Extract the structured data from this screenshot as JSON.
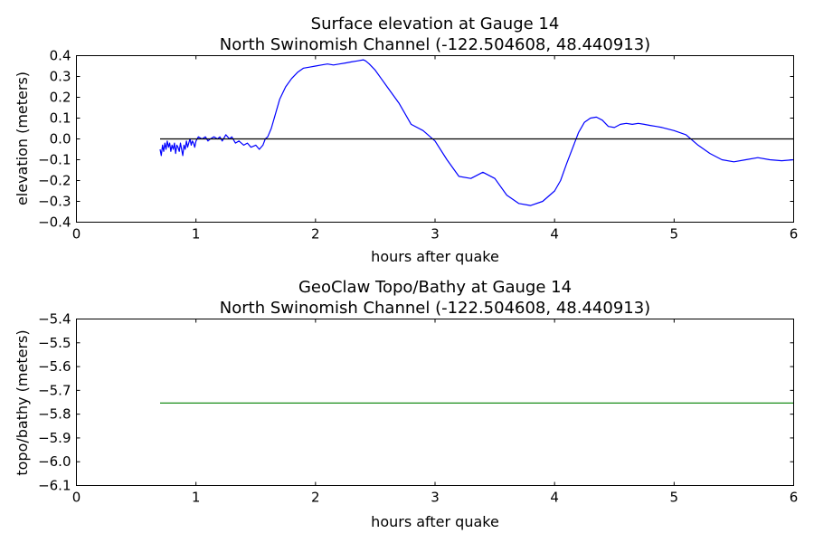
{
  "chart_data": [
    {
      "type": "line",
      "title": "Surface elevation at Gauge 14",
      "subtitle": "North Swinomish Channel  (-122.504608, 48.440913)",
      "xlabel": "hours after quake",
      "ylabel": "elevation (meters)",
      "xlim": [
        0,
        6
      ],
      "ylim": [
        -0.4,
        0.4
      ],
      "xticks": [
        "0",
        "1",
        "2",
        "3",
        "4",
        "5",
        "6"
      ],
      "yticks": [
        "0.4",
        "0.3",
        "0.2",
        "0.1",
        "0.0",
        "−0.1",
        "−0.2",
        "−0.3",
        "−0.4"
      ],
      "grid": false,
      "series": [
        {
          "color": "#0000ff",
          "x": [
            0.7,
            0.71,
            0.72,
            0.73,
            0.74,
            0.75,
            0.76,
            0.77,
            0.78,
            0.79,
            0.8,
            0.81,
            0.82,
            0.83,
            0.84,
            0.85,
            0.86,
            0.87,
            0.88,
            0.89,
            0.9,
            0.91,
            0.92,
            0.93,
            0.94,
            0.95,
            0.96,
            0.97,
            0.98,
            0.99,
            1.0,
            1.02,
            1.05,
            1.08,
            1.1,
            1.12,
            1.15,
            1.18,
            1.2,
            1.22,
            1.25,
            1.28,
            1.3,
            1.33,
            1.36,
            1.4,
            1.43,
            1.46,
            1.5,
            1.53,
            1.56,
            1.58,
            1.6,
            1.63,
            1.66,
            1.7,
            1.75,
            1.8,
            1.85,
            1.9,
            1.95,
            2.0,
            2.05,
            2.1,
            2.15,
            2.2,
            2.25,
            2.3,
            2.35,
            2.4,
            2.42,
            2.45,
            2.5,
            2.55,
            2.6,
            2.7,
            2.8,
            2.9,
            3.0,
            3.1,
            3.2,
            3.3,
            3.4,
            3.5,
            3.6,
            3.7,
            3.8,
            3.9,
            4.0,
            4.05,
            4.1,
            4.2,
            4.25,
            4.3,
            4.35,
            4.4,
            4.45,
            4.5,
            4.55,
            4.6,
            4.65,
            4.7,
            4.75,
            4.8,
            4.85,
            4.9,
            5.0,
            5.1,
            5.2,
            5.3,
            5.4,
            5.5,
            5.6,
            5.7,
            5.8,
            5.9,
            6.0
          ],
          "y": [
            -0.05,
            -0.08,
            -0.03,
            -0.06,
            -0.02,
            -0.05,
            -0.01,
            -0.04,
            -0.02,
            -0.06,
            -0.03,
            -0.05,
            -0.02,
            -0.07,
            -0.03,
            -0.04,
            -0.06,
            -0.02,
            -0.05,
            -0.08,
            -0.03,
            -0.05,
            -0.01,
            -0.04,
            -0.02,
            0.0,
            -0.03,
            -0.01,
            -0.02,
            -0.04,
            -0.01,
            0.01,
            0.0,
            0.01,
            -0.01,
            0.0,
            0.01,
            0.0,
            0.01,
            -0.01,
            0.02,
            0.0,
            0.01,
            -0.02,
            -0.01,
            -0.03,
            -0.02,
            -0.04,
            -0.03,
            -0.05,
            -0.03,
            0.0,
            0.01,
            0.05,
            0.11,
            0.19,
            0.25,
            0.29,
            0.32,
            0.34,
            0.345,
            0.35,
            0.355,
            0.36,
            0.355,
            0.36,
            0.365,
            0.37,
            0.375,
            0.38,
            0.375,
            0.36,
            0.33,
            0.29,
            0.25,
            0.17,
            0.07,
            0.04,
            -0.01,
            -0.1,
            -0.18,
            -0.19,
            -0.16,
            -0.19,
            -0.27,
            -0.31,
            -0.32,
            -0.3,
            -0.25,
            -0.2,
            -0.12,
            0.03,
            0.08,
            0.1,
            0.105,
            0.09,
            0.06,
            0.055,
            0.07,
            0.075,
            0.07,
            0.075,
            0.07,
            0.065,
            0.06,
            0.055,
            0.04,
            0.02,
            -0.03,
            -0.07,
            -0.1,
            -0.11,
            -0.1,
            -0.09,
            -0.1,
            -0.105,
            -0.1
          ]
        },
        {
          "color": "#000000",
          "x": [
            0.7,
            6.0
          ],
          "y": [
            0.0,
            0.0
          ]
        }
      ]
    },
    {
      "type": "line",
      "title": "GeoClaw Topo/Bathy at Gauge 14",
      "subtitle": "North Swinomish Channel  (-122.504608, 48.440913)",
      "xlabel": "hours after quake",
      "ylabel": "topo/bathy (meters)",
      "xlim": [
        0,
        6
      ],
      "ylim": [
        -6.1,
        -5.4
      ],
      "xticks": [
        "0",
        "1",
        "2",
        "3",
        "4",
        "5",
        "6"
      ],
      "yticks": [
        "−5.4",
        "−5.5",
        "−5.6",
        "−5.7",
        "−5.8",
        "−5.9",
        "−6.0",
        "−6.1"
      ],
      "grid": false,
      "series": [
        {
          "color": "#008000",
          "x": [
            0.7,
            6.0
          ],
          "y": [
            -5.753,
            -5.753
          ]
        }
      ]
    }
  ]
}
